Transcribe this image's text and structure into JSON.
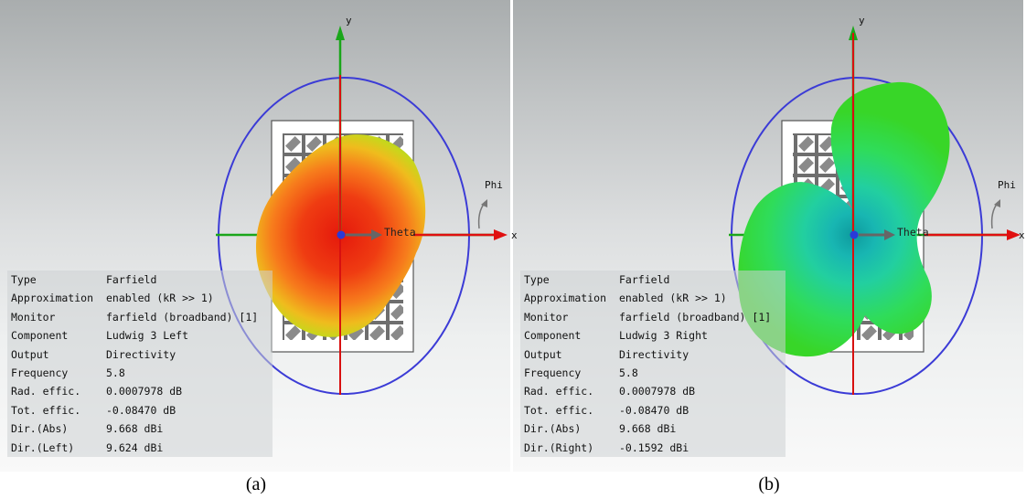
{
  "panels": [
    {
      "caption": "(a)",
      "axes": {
        "x": "x",
        "y": "y",
        "phi": "Phi",
        "theta": "Theta"
      },
      "info": [
        {
          "key": "Type",
          "value": "Farfield"
        },
        {
          "key": "Approximation",
          "value": "enabled (kR >> 1)"
        },
        {
          "key": "Monitor",
          "value": "farfield (broadband) [1]"
        },
        {
          "key": "Component",
          "value": "Ludwig 3 Left"
        },
        {
          "key": "Output",
          "value": "Directivity"
        },
        {
          "key": "Frequency",
          "value": "5.8"
        },
        {
          "key": "Rad. effic.",
          "value": "0.0007978 dB"
        },
        {
          "key": "Tot. effic.",
          "value": "-0.08470 dB"
        },
        {
          "key": "Dir.(Abs)",
          "value": " 9.668 dBi"
        },
        {
          "key": "Dir.(Left)",
          "value": " 9.624 dBi"
        }
      ]
    },
    {
      "caption": "(b)",
      "axes": {
        "x": "x",
        "y": "y",
        "phi": "Phi",
        "theta": "Theta"
      },
      "info": [
        {
          "key": "Type",
          "value": "Farfield"
        },
        {
          "key": "Approximation",
          "value": "enabled (kR >> 1)"
        },
        {
          "key": "Monitor",
          "value": "farfield (broadband) [1]"
        },
        {
          "key": "Component",
          "value": "Ludwig 3 Right"
        },
        {
          "key": "Output",
          "value": "Directivity"
        },
        {
          "key": "Frequency",
          "value": "5.8"
        },
        {
          "key": "Rad. effic.",
          "value": "0.0007978 dB"
        },
        {
          "key": "Tot. effic.",
          "value": "-0.08470 dB"
        },
        {
          "key": "Dir.(Abs)",
          "value": " 9.668 dBi"
        },
        {
          "key": "Dir.(Right)",
          "value": "-0.1592 dBi"
        }
      ]
    }
  ],
  "colors": {
    "background_top": "#a9adae",
    "bounding_ellipse": "#3b3bd6",
    "x_axis": "#e01010",
    "y_axis": "#10a010",
    "z_axis": "#d81010",
    "pattern_a_core": "#e8200e",
    "pattern_a_edge": "#8fd61a",
    "pattern_b_core": "#1ec8a0",
    "pattern_b_edge": "#33dd22"
  },
  "icons": [
    "antenna-array-icon",
    "phi-arrow-icon",
    "theta-arrow-icon",
    "origin-marker-icon"
  ]
}
